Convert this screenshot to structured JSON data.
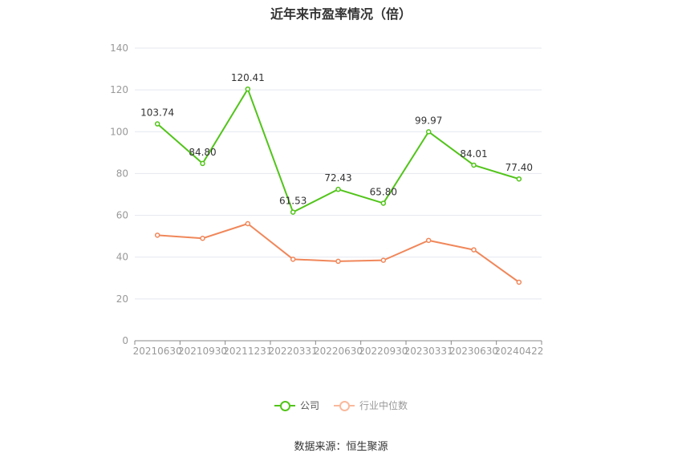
{
  "title": "近年来市盈率情况（倍）",
  "chart_data": {
    "type": "line",
    "categories": [
      "20210630",
      "20210930",
      "20211231",
      "20220331",
      "20220630",
      "20220930",
      "20230331",
      "20230630",
      "20240422"
    ],
    "ylim": [
      0,
      140
    ],
    "yticks": [
      0,
      20,
      40,
      60,
      80,
      100,
      120,
      140
    ],
    "grid": true,
    "legend_position": "bottom",
    "series": [
      {
        "name": "公司",
        "color": "#52c41a",
        "values": [
          103.74,
          84.8,
          120.41,
          61.53,
          72.43,
          65.8,
          99.97,
          84.01,
          77.4
        ],
        "labels": [
          "103.74",
          "84.80",
          "120.41",
          "61.53",
          "72.43",
          "65.80",
          "99.97",
          "84.01",
          "77.40"
        ]
      },
      {
        "name": "行业中位数",
        "color": "#f0875a",
        "values": [
          50.5,
          49.0,
          56.0,
          39.0,
          38.0,
          38.5,
          48.0,
          43.5,
          28.0
        ]
      }
    ]
  },
  "source": "数据来源：恒生聚源"
}
